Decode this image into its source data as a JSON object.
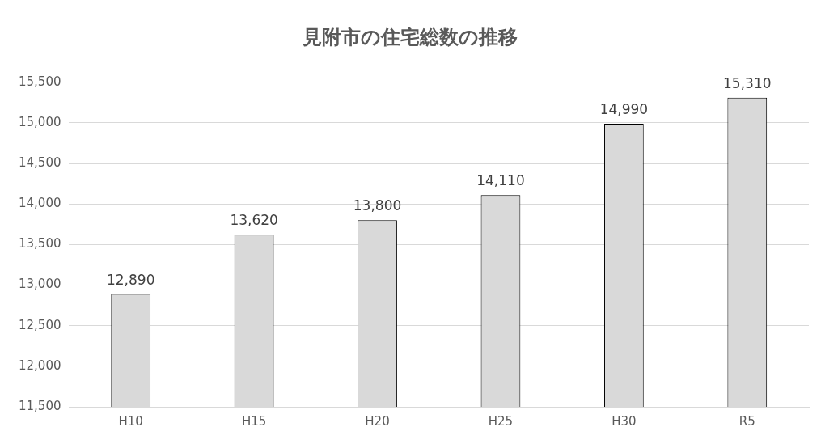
{
  "chart_data": {
    "type": "bar",
    "title": "見附市の住宅総数の推移",
    "categories": [
      "H10",
      "H15",
      "H20",
      "H25",
      "H30",
      "R5"
    ],
    "values": [
      12890,
      13620,
      13800,
      14110,
      14990,
      15310
    ],
    "value_labels": [
      "12,890",
      "13,620",
      "13,800",
      "14,110",
      "14,990",
      "15,310"
    ],
    "color": "#d9d9d9",
    "ylim": [
      11500,
      15500
    ],
    "yticks": [
      {
        "value": 11500,
        "label": "11,500"
      },
      {
        "value": 12000,
        "label": "12,000"
      },
      {
        "value": 12500,
        "label": "12,500"
      },
      {
        "value": 13000,
        "label": "13,000"
      },
      {
        "value": 13500,
        "label": "13,500"
      },
      {
        "value": 14000,
        "label": "14,000"
      },
      {
        "value": 14500,
        "label": "14,500"
      },
      {
        "value": 15000,
        "label": "15,000"
      },
      {
        "value": 15500,
        "label": "15,500"
      }
    ],
    "grid": "y",
    "legend": false
  }
}
